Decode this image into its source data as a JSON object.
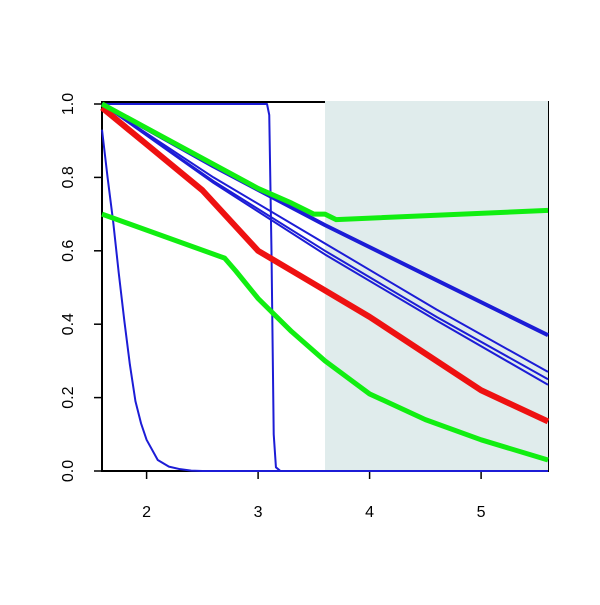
{
  "chart_data": {
    "type": "line",
    "xlim": [
      1.6,
      5.6
    ],
    "ylim": [
      0,
      1
    ],
    "xticks": [
      2,
      3,
      4,
      5
    ],
    "yticks": [
      {
        "value": 0,
        "label": "0.0"
      },
      0.2,
      0.4,
      0.6,
      0.8,
      {
        "value": 1,
        "label": "1.0"
      }
    ],
    "shade": {
      "x": [
        3.6,
        5.6
      ],
      "color": "#e0ecec"
    },
    "series": [
      {
        "color": "#1c1cd6",
        "width": 2,
        "x": [
          1.6,
          1.65,
          1.7,
          1.75,
          1.8,
          1.85,
          1.9,
          1.95,
          2.0,
          2.1,
          2.2,
          2.3,
          2.4,
          2.5,
          5.6
        ],
        "values": [
          0.93,
          0.8,
          0.68,
          0.54,
          0.41,
          0.29,
          0.19,
          0.13,
          0.085,
          0.03,
          0.012,
          0.005,
          0.001,
          0,
          0
        ]
      },
      {
        "color": "#1c1cd6",
        "width": 2,
        "x": [
          1.6,
          3.08,
          3.1,
          3.12,
          3.14,
          3.16,
          3.2,
          5.6
        ],
        "values": [
          1.0,
          1.0,
          0.97,
          0.6,
          0.1,
          0.01,
          0,
          0
        ]
      },
      {
        "color": "#1c1cd6",
        "width": 2,
        "x": [
          1.6,
          2.6,
          3.6,
          4.6,
          5.6
        ],
        "values": [
          1.0,
          0.8,
          0.62,
          0.44,
          0.27
        ]
      },
      {
        "color": "#1c1cd6",
        "width": 2,
        "x": [
          1.6,
          2.6,
          3.6,
          4.6,
          5.6
        ],
        "values": [
          1.0,
          0.79,
          0.6,
          0.42,
          0.25
        ]
      },
      {
        "color": "#1c1cd6",
        "width": 2,
        "x": [
          1.6,
          2.6,
          3.6,
          4.6,
          5.6
        ],
        "values": [
          1.0,
          0.785,
          0.59,
          0.41,
          0.235
        ]
      },
      {
        "color": "#1c1cd6",
        "width": 4,
        "x": [
          1.6,
          2.6,
          3.6,
          4.6,
          5.6
        ],
        "values": [
          1.0,
          0.83,
          0.67,
          0.52,
          0.37
        ]
      },
      {
        "color": "#ee1111",
        "width": 6,
        "x": [
          1.6,
          2.0,
          2.5,
          3.0,
          3.5,
          4.0,
          4.5,
          5.0,
          5.6
        ],
        "values": [
          0.99,
          0.89,
          0.765,
          0.6,
          0.51,
          0.42,
          0.32,
          0.22,
          0.135
        ]
      },
      {
        "color": "#11ee11",
        "width": 5,
        "x": [
          1.6,
          3.0,
          3.3,
          3.5,
          3.6,
          3.7,
          5.6
        ],
        "values": [
          1.0,
          0.77,
          0.73,
          0.7,
          0.7,
          0.685,
          0.71
        ]
      },
      {
        "color": "#11ee11",
        "width": 5,
        "x": [
          1.6,
          2.7,
          2.8,
          3.0,
          3.3,
          3.6,
          4.0,
          4.5,
          5.0,
          5.6
        ],
        "values": [
          0.7,
          0.58,
          0.545,
          0.47,
          0.38,
          0.3,
          0.21,
          0.14,
          0.085,
          0.03
        ]
      }
    ]
  }
}
